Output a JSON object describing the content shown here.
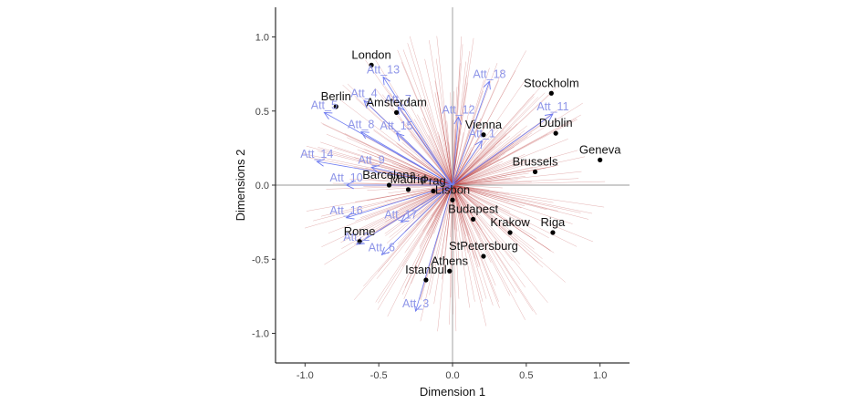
{
  "chart_data": {
    "type": "scatter",
    "xlabel": "Dimension 1",
    "ylabel": "Dimensions 2",
    "xlim": [
      -1.2,
      1.2
    ],
    "ylim": [
      -1.2,
      1.2
    ],
    "x_ticks": [
      "-1.0",
      "-0.5",
      "0.0",
      "0.5",
      "1.0"
    ],
    "y_ticks": [
      "1.0",
      "0.5",
      "0.0",
      "-0.5",
      "-1.0"
    ],
    "grid": false,
    "reference_lines": [
      0,
      0
    ],
    "cities": [
      {
        "name": "London",
        "x": -0.55,
        "y": 0.81
      },
      {
        "name": "Berlin",
        "x": -0.79,
        "y": 0.53
      },
      {
        "name": "Amsterdam",
        "x": -0.38,
        "y": 0.49
      },
      {
        "name": "Barcelona",
        "x": -0.43,
        "y": 0.0
      },
      {
        "name": "Madrid",
        "x": -0.3,
        "y": -0.03
      },
      {
        "name": "Prag",
        "x": -0.13,
        "y": -0.04
      },
      {
        "name": "Lisbon",
        "x": 0.0,
        "y": -0.1
      },
      {
        "name": "Budapest",
        "x": 0.14,
        "y": -0.23
      },
      {
        "name": "Vienna",
        "x": 0.21,
        "y": 0.34
      },
      {
        "name": "Stockholm",
        "x": 0.67,
        "y": 0.62
      },
      {
        "name": "Dublin",
        "x": 0.7,
        "y": 0.35
      },
      {
        "name": "Geneva",
        "x": 1.0,
        "y": 0.17
      },
      {
        "name": "Brussels",
        "x": 0.56,
        "y": 0.09
      },
      {
        "name": "Riga",
        "x": 0.68,
        "y": -0.32
      },
      {
        "name": "Krakow",
        "x": 0.39,
        "y": -0.32
      },
      {
        "name": "StPetersburg",
        "x": 0.21,
        "y": -0.48
      },
      {
        "name": "Athens",
        "x": -0.02,
        "y": -0.58
      },
      {
        "name": "Istanbul",
        "x": -0.18,
        "y": -0.64
      },
      {
        "name": "Rome",
        "x": -0.63,
        "y": -0.38
      }
    ],
    "attributes": [
      {
        "name": "Att_1",
        "x": 0.2,
        "y": 0.3
      },
      {
        "name": "Att_2",
        "x": -0.65,
        "y": -0.4
      },
      {
        "name": "Att_3",
        "x": -0.25,
        "y": -0.85
      },
      {
        "name": "Att_4",
        "x": -0.6,
        "y": 0.57
      },
      {
        "name": "Att_5",
        "x": -0.87,
        "y": 0.49
      },
      {
        "name": "Att_6",
        "x": -0.48,
        "y": -0.47
      },
      {
        "name": "Att_7",
        "x": -0.37,
        "y": 0.53
      },
      {
        "name": "Att_8",
        "x": -0.62,
        "y": 0.36
      },
      {
        "name": "Att_9",
        "x": -0.55,
        "y": 0.12
      },
      {
        "name": "Att_10",
        "x": -0.72,
        "y": 0.0
      },
      {
        "name": "Att_11",
        "x": 0.68,
        "y": 0.48
      },
      {
        "name": "Att_12",
        "x": 0.04,
        "y": 0.46
      },
      {
        "name": "Att_13",
        "x": -0.47,
        "y": 0.73
      },
      {
        "name": "Att_14",
        "x": -0.92,
        "y": 0.16
      },
      {
        "name": "Att_15",
        "x": -0.38,
        "y": 0.35
      },
      {
        "name": "Att_16",
        "x": -0.72,
        "y": -0.22
      },
      {
        "name": "Att_17",
        "x": -0.35,
        "y": -0.25
      },
      {
        "name": "Att_18",
        "x": 0.25,
        "y": 0.7
      }
    ],
    "colors": {
      "points": "#000000",
      "attribute_arrows": "#6f7cf0",
      "attribute_labels": "#8f96e8",
      "rays": "#b22222",
      "reference_lines": "#999999"
    }
  }
}
